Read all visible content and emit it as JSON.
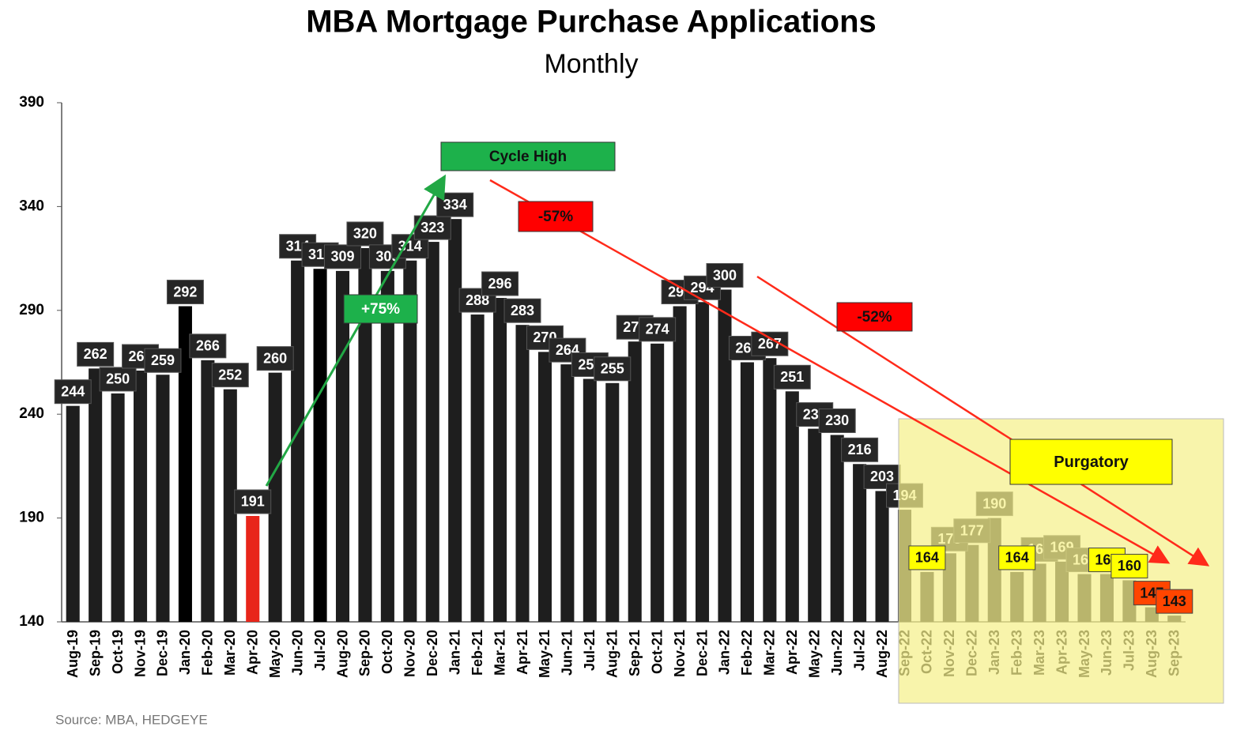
{
  "chart_data": {
    "type": "bar",
    "title": "MBA Mortgage Purchase Applications",
    "subtitle": "Monthly",
    "source": "Source: MBA, HEDGEYE",
    "annotations": [
      "Cycle High",
      "+75%",
      "-57%",
      "-52%",
      "Purgatory"
    ],
    "categories": [
      "Aug-19",
      "Sep-19",
      "Oct-19",
      "Nov-19",
      "Dec-19",
      "Jan-20",
      "Feb-20",
      "Mar-20",
      "Apr-20",
      "May-20",
      "Jun-20",
      "Jul-20",
      "Aug-20",
      "Sep-20",
      "Oct-20",
      "Nov-20",
      "Dec-20",
      "Jan-21",
      "Feb-21",
      "Mar-21",
      "Apr-21",
      "May-21",
      "Jun-21",
      "Jul-21",
      "Aug-21",
      "Sep-21",
      "Oct-21",
      "Nov-21",
      "Dec-21",
      "Jan-22",
      "Feb-22",
      "Mar-22",
      "Apr-22",
      "May-22",
      "Jun-22",
      "Jul-22",
      "Aug-22",
      "Sep-22",
      "Oct-22",
      "Nov-22",
      "Dec-22",
      "Jan-23",
      "Feb-23",
      "Mar-23",
      "Apr-23",
      "May-23",
      "Jun-23",
      "Jul-23",
      "Aug-23",
      "Sep-23"
    ],
    "values": [
      244,
      262,
      250,
      261,
      259,
      292,
      266,
      252,
      191,
      260,
      314,
      310,
      309,
      320,
      309,
      314,
      323,
      334,
      288,
      296,
      283,
      270,
      264,
      257,
      255,
      275,
      274,
      292,
      294,
      300,
      265,
      267,
      251,
      233,
      230,
      216,
      203,
      194,
      164,
      173,
      177,
      190,
      164,
      168,
      169,
      163,
      163,
      160,
      147,
      143
    ],
    "colors": [
      "#1e1e1e",
      "#1e1e1e",
      "#1e1e1e",
      "#1e1e1e",
      "#1e1e1e",
      "#000000",
      "#1e1e1e",
      "#1e1e1e",
      "#e8251a",
      "#1e1e1e",
      "#1e1e1e",
      "#000000",
      "#1e1e1e",
      "#1e1e1e",
      "#1e1e1e",
      "#1e1e1e",
      "#1e1e1e",
      "#1e1e1e",
      "#1e1e1e",
      "#1e1e1e",
      "#1e1e1e",
      "#1e1e1e",
      "#1e1e1e",
      "#1e1e1e",
      "#1e1e1e",
      "#1e1e1e",
      "#1e1e1e",
      "#1e1e1e",
      "#1e1e1e",
      "#1e1e1e",
      "#1e1e1e",
      "#1e1e1e",
      "#1e1e1e",
      "#1e1e1e",
      "#1e1e1e",
      "#1e1e1e",
      "#1e1e1e",
      "#1e1e1e",
      "#1e1e1e",
      "#1e1e1e",
      "#1e1e1e",
      "#1e1e1e",
      "#1e1e1e",
      "#1e1e1e",
      "#1e1e1e",
      "#1e1e1e",
      "#1e1e1e",
      "#1e1e1e",
      "#1e1e1e",
      "#1e1e1e"
    ],
    "label_fills": [
      "#262626",
      "#262626",
      "#262626",
      "#262626",
      "#262626",
      "#262626",
      "#262626",
      "#262626",
      "#262626",
      "#262626",
      "#262626",
      "#262626",
      "#262626",
      "#262626",
      "#262626",
      "#262626",
      "#262626",
      "#262626",
      "#262626",
      "#262626",
      "#262626",
      "#262626",
      "#262626",
      "#262626",
      "#262626",
      "#262626",
      "#262626",
      "#262626",
      "#262626",
      "#262626",
      "#262626",
      "#262626",
      "#262626",
      "#262626",
      "#262626",
      "#262626",
      "#262626",
      "#262626",
      "#ffff00",
      "#262626",
      "#262626",
      "#262626",
      "#ffff00",
      "#262626",
      "#262626",
      "#262626",
      "#ffff00",
      "#ffff00",
      "#ff4500",
      "#ff4500"
    ],
    "highlight_color": "#f5f08a",
    "ylim": [
      140,
      390
    ],
    "yticks": [
      140,
      190,
      240,
      290,
      340,
      390
    ]
  }
}
